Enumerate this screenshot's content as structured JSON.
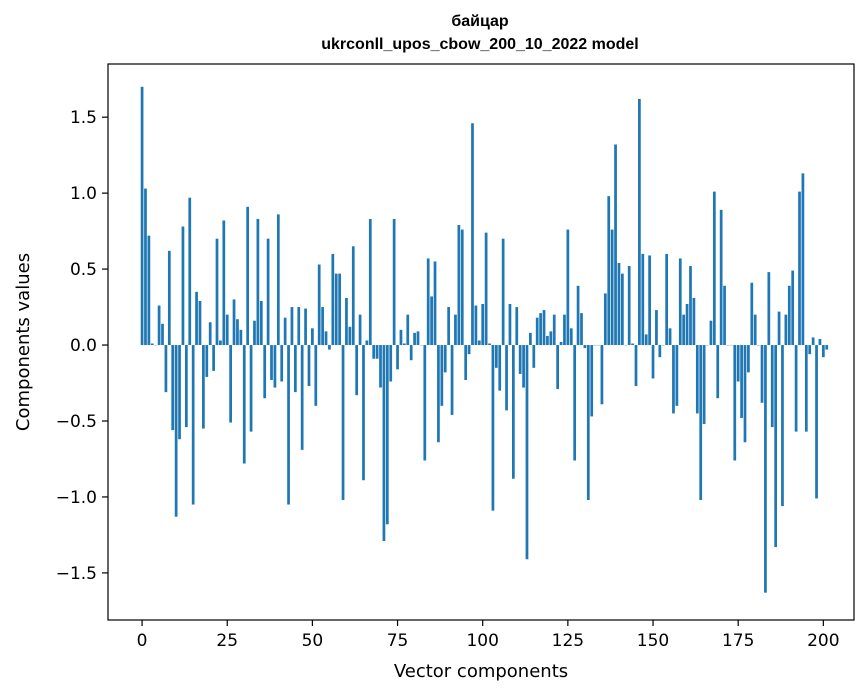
{
  "chart_data": {
    "type": "bar",
    "title": [
      "байцар",
      "ukrconll_upos_cbow_200_10_2022 model"
    ],
    "xlabel": "Vector components",
    "ylabel": "Components values",
    "xlim": [
      -10,
      209
    ],
    "ylim": [
      -1.81,
      1.85
    ],
    "xticks": [
      0,
      25,
      50,
      75,
      100,
      125,
      150,
      175,
      200
    ],
    "yticks": [
      -1.5,
      -1.0,
      -0.5,
      0.0,
      0.5,
      1.0,
      1.5
    ],
    "xtick_labels": [
      "0",
      "25",
      "50",
      "75",
      "100",
      "125",
      "150",
      "175",
      "200"
    ],
    "ytick_labels": [
      "−1.5",
      "−1.0",
      "−0.5",
      "0.0",
      "0.5",
      "1.0",
      "1.5"
    ],
    "bar_color": "#1f77b4",
    "values": [
      1.7,
      1.03,
      0.72,
      0.01,
      0.0,
      0.26,
      0.14,
      -0.31,
      0.62,
      -0.56,
      -1.13,
      -0.62,
      0.78,
      -0.54,
      0.97,
      -1.05,
      0.35,
      0.29,
      -0.55,
      -0.21,
      0.15,
      -0.17,
      0.7,
      0.03,
      0.82,
      0.2,
      -0.51,
      0.3,
      0.17,
      0.1,
      -0.78,
      0.91,
      -0.57,
      0.16,
      0.83,
      0.29,
      -0.35,
      0.7,
      -0.23,
      -0.28,
      0.86,
      -0.24,
      0.18,
      -1.05,
      0.25,
      -0.31,
      0.25,
      -0.69,
      0.24,
      -0.27,
      0.11,
      -0.4,
      0.53,
      0.25,
      0.09,
      -0.03,
      0.6,
      0.47,
      0.47,
      -1.02,
      0.31,
      0.12,
      0.65,
      -0.33,
      0.2,
      -0.89,
      0.03,
      0.83,
      -0.09,
      -0.09,
      -0.28,
      -1.29,
      -1.18,
      -0.24,
      0.83,
      -0.16,
      0.1,
      0.01,
      0.2,
      -0.1,
      0.08,
      0.09,
      0.0,
      -0.76,
      0.57,
      0.32,
      0.55,
      -0.64,
      -0.4,
      -0.18,
      0.25,
      -0.46,
      0.2,
      0.79,
      0.76,
      -0.23,
      -0.06,
      1.46,
      0.26,
      0.03,
      0.27,
      0.74,
      0.01,
      -1.09,
      -0.15,
      -0.3,
      0.7,
      -0.43,
      0.27,
      -0.88,
      0.25,
      -0.19,
      -0.28,
      -1.41,
      0.08,
      -0.15,
      0.18,
      0.21,
      0.23,
      0.06,
      0.09,
      0.2,
      -0.29,
      0.02,
      0.2,
      0.76,
      0.11,
      -0.76,
      0.39,
      0.21,
      -0.02,
      -1.02,
      -0.47,
      0.0,
      0.0,
      -0.39,
      0.34,
      0.98,
      0.76,
      1.32,
      0.54,
      0.47,
      0.0,
      0.52,
      0.01,
      -0.27,
      1.62,
      0.6,
      0.07,
      0.59,
      -0.22,
      0.23,
      -0.08,
      0.0,
      0.6,
      0.11,
      -0.45,
      -0.4,
      0.57,
      0.2,
      0.27,
      0.52,
      0.31,
      -0.45,
      -1.02,
      -0.52,
      0.0,
      0.16,
      1.01,
      -0.35,
      0.89,
      0.39,
      0.0,
      0.0,
      -0.76,
      -0.24,
      -0.48,
      -0.64,
      -0.18,
      0.41,
      0.2,
      0.0,
      -0.38,
      -1.63,
      0.48,
      -0.54,
      -1.33,
      0.22,
      -1.06,
      0.2,
      0.39,
      0.49,
      -0.57,
      1.01,
      1.13,
      -0.57,
      -0.06,
      0.05,
      -1.01,
      0.04,
      -0.08,
      -0.03
    ]
  }
}
